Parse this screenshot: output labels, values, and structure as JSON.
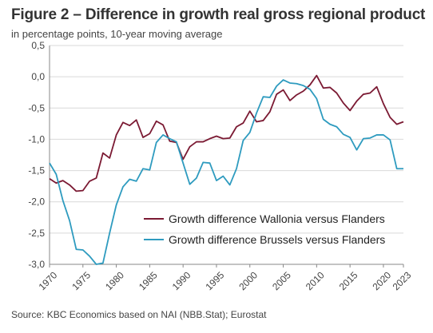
{
  "title": "Figure 2 – Difference in growth real gross regional product",
  "subtitle": "in percentage points, 10-year moving average",
  "source": "Source: KBC Economics based on NAI (NBB.Stat); Eurostat",
  "colors": {
    "wallonia": "#7b1a33",
    "brussels": "#2e9bbf",
    "grid": "#d9d9d9",
    "axis": "#888888"
  },
  "chart_data": {
    "type": "line",
    "title": "Figure 2 – Difference in growth real gross regional product",
    "subtitle": "in percentage points, 10-year moving average",
    "ylim": [
      -3.0,
      0.5
    ],
    "yticks": [
      0.5,
      0.0,
      -0.5,
      -1.0,
      -1.5,
      -2.0,
      -2.5,
      -3.0
    ],
    "ytick_labels": [
      "0,5",
      "0,0",
      "-0,5",
      "-1,0",
      "-1,5",
      "-2,0",
      "-2,5",
      "-3,0"
    ],
    "xlim": [
      1970,
      2023
    ],
    "xticks": [
      1970,
      1975,
      1980,
      1985,
      1990,
      1995,
      2000,
      2005,
      2010,
      2015,
      2020,
      2023
    ],
    "xtick_labels": [
      "1970",
      "1975",
      "1980",
      "1985",
      "1990",
      "1995",
      "2000",
      "2005",
      "2010",
      "2015",
      "2020",
      "2023"
    ],
    "grid": "horizontal",
    "legend_position": "center-right",
    "x": [
      1970,
      1971,
      1972,
      1973,
      1974,
      1975,
      1976,
      1977,
      1978,
      1979,
      1980,
      1981,
      1982,
      1983,
      1984,
      1985,
      1986,
      1987,
      1988,
      1989,
      1990,
      1991,
      1992,
      1993,
      1994,
      1995,
      1996,
      1997,
      1998,
      1999,
      2000,
      2001,
      2002,
      2003,
      2004,
      2005,
      2006,
      2007,
      2008,
      2009,
      2010,
      2011,
      2012,
      2013,
      2014,
      2015,
      2016,
      2017,
      2018,
      2019,
      2020,
      2021,
      2022,
      2023
    ],
    "series": [
      {
        "name": "Growth difference Wallonia versus Flanders",
        "values": [
          -1.63,
          -1.7,
          -1.66,
          -1.73,
          -1.83,
          -1.82,
          -1.67,
          -1.62,
          -1.22,
          -1.3,
          -0.93,
          -0.73,
          -0.78,
          -0.69,
          -0.97,
          -0.91,
          -0.71,
          -0.77,
          -1.03,
          -1.05,
          -1.32,
          -1.12,
          -1.04,
          -1.04,
          -0.99,
          -0.95,
          -0.99,
          -0.98,
          -0.8,
          -0.74,
          -0.55,
          -0.72,
          -0.7,
          -0.56,
          -0.28,
          -0.21,
          -0.38,
          -0.29,
          -0.23,
          -0.13,
          0.02,
          -0.18,
          -0.17,
          -0.26,
          -0.42,
          -0.54,
          -0.39,
          -0.28,
          -0.26,
          -0.16,
          -0.43,
          -0.65,
          -0.76,
          -0.72
        ]
      },
      {
        "name": "Growth difference Brussels versus Flanders",
        "values": [
          -1.38,
          -1.56,
          -1.98,
          -2.3,
          -2.76,
          -2.77,
          -2.87,
          -3.0,
          -2.98,
          -2.5,
          -2.05,
          -1.76,
          -1.64,
          -1.67,
          -1.47,
          -1.49,
          -1.05,
          -0.93,
          -0.99,
          -1.04,
          -1.38,
          -1.72,
          -1.62,
          -1.37,
          -1.38,
          -1.66,
          -1.59,
          -1.73,
          -1.47,
          -1.02,
          -0.89,
          -0.58,
          -0.32,
          -0.33,
          -0.15,
          -0.05,
          -0.1,
          -0.11,
          -0.14,
          -0.2,
          -0.35,
          -0.68,
          -0.76,
          -0.8,
          -0.92,
          -0.97,
          -1.17,
          -0.99,
          -0.98,
          -0.93,
          -0.93,
          -1.01,
          -1.47,
          -1.47
        ]
      }
    ]
  }
}
